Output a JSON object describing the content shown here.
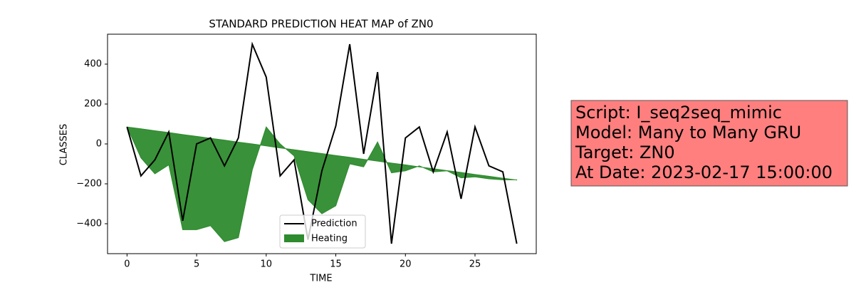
{
  "chart_data": {
    "type": "line",
    "title": "STANDARD PREDICTION HEAT MAP of ZN0",
    "x_label": "TIME",
    "y_label": "CLASSES",
    "x": [
      0,
      1,
      2,
      3,
      4,
      5,
      6,
      7,
      8,
      9,
      10,
      11,
      12,
      13,
      14,
      15,
      16,
      17,
      18,
      19,
      20,
      21,
      22,
      23,
      24,
      25,
      26,
      27,
      28
    ],
    "series": [
      {
        "name": "Prediction",
        "color": "#000000",
        "kind": "line",
        "values": [
          85,
          -160,
          -80,
          60,
          -385,
          0,
          30,
          -110,
          30,
          500,
          335,
          -160,
          -80,
          -480,
          -135,
          90,
          500,
          -50,
          360,
          -500,
          30,
          85,
          -140,
          60,
          -275,
          85,
          -110,
          -140,
          -500
        ]
      },
      {
        "name": "Heating",
        "color": "#2e8b2e",
        "kind": "fill",
        "values": [
          85,
          -70,
          -150,
          -105,
          -430,
          -430,
          -410,
          -490,
          -470,
          -130,
          85,
          0,
          -60,
          -280,
          -350,
          -310,
          -100,
          -115,
          10,
          -145,
          -135,
          -110,
          -140,
          -135,
          -170,
          -165,
          -175,
          -180,
          -180
        ],
        "base": [
          85,
          76,
          66,
          57,
          47,
          38,
          28,
          19,
          9,
          0,
          -10,
          -20,
          -29,
          -39,
          -48,
          -58,
          -67,
          -77,
          -86,
          -96,
          -105,
          -115,
          -124,
          -134,
          -143,
          -153,
          -162,
          -172,
          -181
        ]
      }
    ],
    "xlim": [
      -1.4,
      29.4
    ],
    "ylim": [
      -550,
      550
    ],
    "xticks": [
      0,
      5,
      10,
      15,
      20,
      25
    ],
    "yticks": [
      {
        "value": -400,
        "label": "−400"
      },
      {
        "value": -200,
        "label": "−200"
      },
      0,
      200,
      400
    ],
    "legend": "lower center",
    "annotation": [
      "Script: I_seq2seq_mimic",
      "Model: Many to Many GRU",
      "Target: ZN0",
      "At Date: 2023-02-17 15:00:00"
    ],
    "annotation_color": "#ff7f7f"
  }
}
